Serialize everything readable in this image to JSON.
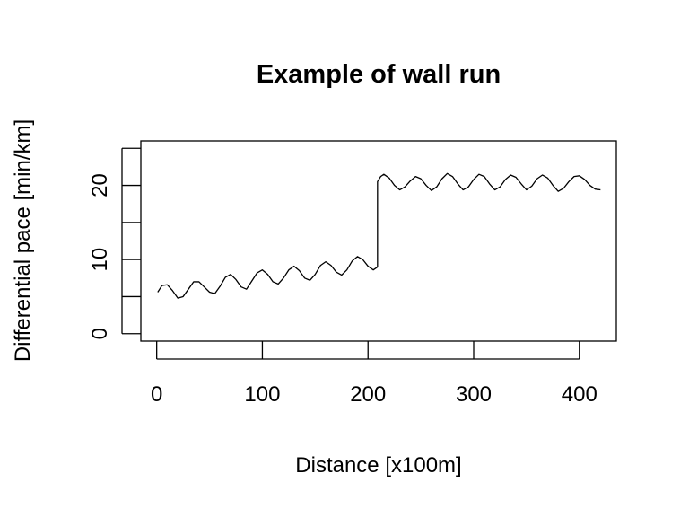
{
  "chart_data": {
    "type": "line",
    "title": "Example of wall run",
    "xlabel": "Distance [x100m]",
    "ylabel": "Differential pace [min/km]",
    "xlim": [
      -15,
      435
    ],
    "ylim": [
      -1,
      26
    ],
    "x_ticks": [
      0,
      100,
      200,
      300,
      400
    ],
    "y_ticks": [
      0,
      5,
      10,
      15,
      20,
      25
    ],
    "y_tick_labels": [
      {
        "value": 0,
        "label": "0"
      },
      {
        "value": 10,
        "label": "10"
      },
      {
        "value": 20,
        "label": "20"
      }
    ],
    "x_tick_labels": [
      "0",
      "100",
      "200",
      "300",
      "400"
    ],
    "grid": false,
    "colors": {
      "line": "#000000",
      "axis": "#000000",
      "background": "#ffffff"
    },
    "series": [
      {
        "x": [
          1,
          5,
          10,
          15,
          20,
          25,
          30,
          35,
          40,
          45,
          50,
          55,
          60,
          65,
          70,
          75,
          80,
          85,
          90,
          95,
          100,
          105,
          110,
          115,
          120,
          125,
          130,
          135,
          140,
          145,
          150,
          155,
          160,
          165,
          170,
          175,
          180,
          185,
          190,
          195,
          200,
          205,
          209,
          209,
          212,
          215,
          220,
          225,
          230,
          235,
          240,
          245,
          250,
          255,
          260,
          265,
          270,
          275,
          280,
          285,
          290,
          295,
          300,
          305,
          310,
          315,
          320,
          325,
          330,
          335,
          340,
          345,
          350,
          355,
          360,
          365,
          370,
          375,
          380,
          385,
          390,
          395,
          400,
          405,
          410,
          415,
          420
        ],
        "y": [
          5.6,
          6.5,
          6.6,
          5.8,
          4.8,
          5.0,
          6.0,
          7.0,
          7.0,
          6.3,
          5.6,
          5.4,
          6.4,
          7.6,
          8.0,
          7.3,
          6.3,
          6.0,
          7.1,
          8.2,
          8.6,
          8.0,
          7.0,
          6.7,
          7.5,
          8.6,
          9.1,
          8.5,
          7.5,
          7.2,
          8.0,
          9.2,
          9.7,
          9.2,
          8.3,
          7.9,
          8.6,
          9.8,
          10.4,
          10.0,
          9.1,
          8.6,
          9.0,
          20.5,
          21.2,
          21.5,
          21.0,
          20.0,
          19.4,
          19.8,
          20.6,
          21.2,
          20.9,
          20.0,
          19.3,
          19.8,
          20.9,
          21.6,
          21.2,
          20.2,
          19.4,
          19.8,
          20.8,
          21.5,
          21.2,
          20.2,
          19.4,
          19.8,
          20.8,
          21.4,
          21.1,
          20.2,
          19.4,
          19.9,
          20.9,
          21.4,
          21.0,
          20.0,
          19.2,
          19.6,
          20.5,
          21.2,
          21.3,
          20.8,
          20.0,
          19.5,
          19.4
        ]
      }
    ]
  }
}
